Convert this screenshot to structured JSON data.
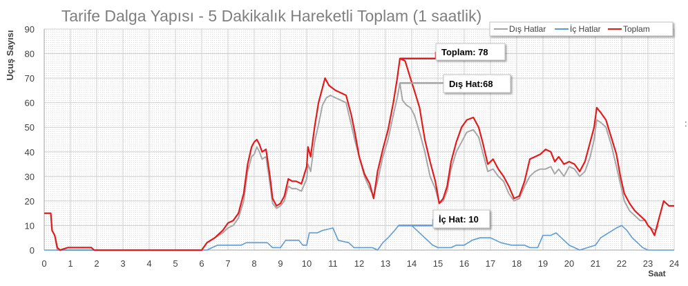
{
  "chart_data": {
    "type": "line",
    "title": "Tarife Dalga Yapısı - 5 Dakikalık Hareketli Toplam (1 saatlik)",
    "ylabel": "Uçuş Sayısı",
    "xlabel": "Saat",
    "xlim": [
      0,
      24
    ],
    "ylim": [
      0,
      90
    ],
    "x_ticks": [
      "0",
      "1",
      "2",
      "3",
      "4",
      "5",
      "6",
      "7",
      "8",
      "9",
      "10",
      "11",
      "12",
      "13",
      "14",
      "15",
      "16",
      "17",
      "18",
      "19",
      "20",
      "21",
      "22",
      "23",
      "24"
    ],
    "y_ticks": [
      "0",
      "10",
      "20",
      "30",
      "40",
      "50",
      "60",
      "70",
      "80",
      "90"
    ],
    "grid": true,
    "legend_position": "top-right",
    "colors": {
      "dis": "#a6a6a6",
      "ic": "#5b9bd5",
      "toplam": "#e31a1c"
    },
    "series": [
      {
        "name": "Dış Hatlar",
        "color": "#a6a6a6",
        "points": [
          [
            0,
            15
          ],
          [
            0.25,
            15
          ],
          [
            0.3,
            8
          ],
          [
            0.4,
            6
          ],
          [
            0.5,
            0
          ],
          [
            6,
            0
          ],
          [
            6.2,
            3
          ],
          [
            6.5,
            5
          ],
          [
            6.8,
            7
          ],
          [
            7.0,
            9
          ],
          [
            7.2,
            10
          ],
          [
            7.4,
            13
          ],
          [
            7.6,
            20
          ],
          [
            7.75,
            32
          ],
          [
            7.9,
            38
          ],
          [
            8.0,
            39
          ],
          [
            8.1,
            42
          ],
          [
            8.2,
            40
          ],
          [
            8.3,
            37
          ],
          [
            8.45,
            38
          ],
          [
            8.6,
            27
          ],
          [
            8.7,
            19
          ],
          [
            8.85,
            17
          ],
          [
            9.0,
            18
          ],
          [
            9.15,
            20
          ],
          [
            9.3,
            26
          ],
          [
            9.45,
            25
          ],
          [
            9.6,
            25
          ],
          [
            9.8,
            24
          ],
          [
            10.0,
            29
          ],
          [
            10.05,
            35
          ],
          [
            10.15,
            32
          ],
          [
            10.3,
            44
          ],
          [
            10.45,
            51
          ],
          [
            10.6,
            59
          ],
          [
            10.75,
            62
          ],
          [
            10.9,
            63
          ],
          [
            11.1,
            62
          ],
          [
            11.3,
            61
          ],
          [
            11.5,
            60
          ],
          [
            11.7,
            51
          ],
          [
            11.85,
            44
          ],
          [
            12.0,
            38
          ],
          [
            12.2,
            30
          ],
          [
            12.4,
            25
          ],
          [
            12.55,
            22
          ],
          [
            12.7,
            28
          ],
          [
            12.9,
            38
          ],
          [
            13.1,
            45
          ],
          [
            13.3,
            55
          ],
          [
            13.45,
            62
          ],
          [
            13.55,
            68
          ],
          [
            13.65,
            61
          ],
          [
            13.8,
            59
          ],
          [
            13.95,
            58
          ],
          [
            14.1,
            55
          ],
          [
            14.3,
            48
          ],
          [
            14.5,
            40
          ],
          [
            14.7,
            30
          ],
          [
            14.9,
            25
          ],
          [
            15.05,
            19
          ],
          [
            15.2,
            20
          ],
          [
            15.35,
            24
          ],
          [
            15.5,
            33
          ],
          [
            15.7,
            40
          ],
          [
            15.9,
            44
          ],
          [
            16.1,
            48
          ],
          [
            16.35,
            49
          ],
          [
            16.55,
            46
          ],
          [
            16.7,
            40
          ],
          [
            16.9,
            32
          ],
          [
            17.1,
            33
          ],
          [
            17.3,
            30
          ],
          [
            17.5,
            28
          ],
          [
            17.7,
            23
          ],
          [
            17.9,
            20
          ],
          [
            18.1,
            21
          ],
          [
            18.3,
            26
          ],
          [
            18.5,
            30
          ],
          [
            18.7,
            32
          ],
          [
            18.9,
            33
          ],
          [
            19.1,
            33
          ],
          [
            19.3,
            34
          ],
          [
            19.45,
            31
          ],
          [
            19.6,
            33
          ],
          [
            19.8,
            30
          ],
          [
            20.0,
            34
          ],
          [
            20.2,
            33
          ],
          [
            20.4,
            30
          ],
          [
            20.6,
            32
          ],
          [
            20.8,
            38
          ],
          [
            20.95,
            45
          ],
          [
            21.05,
            53
          ],
          [
            21.2,
            52
          ],
          [
            21.4,
            50
          ],
          [
            21.6,
            43
          ],
          [
            21.8,
            34
          ],
          [
            21.95,
            27
          ],
          [
            22.1,
            20
          ],
          [
            22.3,
            16
          ],
          [
            22.5,
            14
          ],
          [
            22.7,
            12
          ],
          [
            22.9,
            12
          ],
          [
            23.0,
            10
          ],
          [
            23.1,
            9
          ],
          [
            23.3,
            8
          ],
          [
            23.4,
            10
          ]
        ]
      },
      {
        "name": "İç Hatlar",
        "color": "#5b9bd5",
        "points": [
          [
            0,
            0
          ],
          [
            6.2,
            0
          ],
          [
            6.4,
            1
          ],
          [
            6.6,
            2
          ],
          [
            7.5,
            2
          ],
          [
            7.7,
            3
          ],
          [
            8.5,
            3
          ],
          [
            8.7,
            1
          ],
          [
            9.0,
            1
          ],
          [
            9.2,
            4
          ],
          [
            9.7,
            4
          ],
          [
            9.85,
            2
          ],
          [
            10.0,
            2
          ],
          [
            10.1,
            7
          ],
          [
            10.4,
            7
          ],
          [
            10.6,
            8
          ],
          [
            11.0,
            9
          ],
          [
            11.2,
            4
          ],
          [
            11.6,
            3
          ],
          [
            11.8,
            1
          ],
          [
            12.5,
            1
          ],
          [
            12.7,
            0
          ],
          [
            12.9,
            3
          ],
          [
            13.1,
            5
          ],
          [
            13.35,
            8
          ],
          [
            13.5,
            10
          ],
          [
            14.0,
            10
          ],
          [
            14.2,
            8
          ],
          [
            14.4,
            6
          ],
          [
            14.6,
            4
          ],
          [
            14.8,
            2
          ],
          [
            15.0,
            1
          ],
          [
            15.5,
            1
          ],
          [
            15.7,
            2
          ],
          [
            16.0,
            2
          ],
          [
            16.3,
            4
          ],
          [
            16.6,
            5
          ],
          [
            17.0,
            5
          ],
          [
            17.4,
            3
          ],
          [
            17.8,
            2
          ],
          [
            18.0,
            2
          ],
          [
            18.3,
            2
          ],
          [
            18.5,
            1
          ],
          [
            18.8,
            1
          ],
          [
            19.0,
            6
          ],
          [
            19.3,
            6
          ],
          [
            19.5,
            7
          ],
          [
            19.8,
            4
          ],
          [
            20.0,
            2
          ],
          [
            20.2,
            1
          ],
          [
            20.4,
            0
          ],
          [
            20.7,
            1
          ],
          [
            21.0,
            2
          ],
          [
            21.2,
            5
          ],
          [
            21.5,
            7
          ],
          [
            21.8,
            9
          ],
          [
            22.0,
            10
          ],
          [
            22.2,
            8
          ],
          [
            22.4,
            5
          ],
          [
            22.6,
            3
          ],
          [
            22.8,
            1
          ],
          [
            23.0,
            0
          ],
          [
            24,
            0
          ]
        ]
      },
      {
        "name": "Toplam",
        "color": "#e31a1c",
        "points": [
          [
            0,
            15
          ],
          [
            0.25,
            15
          ],
          [
            0.3,
            8
          ],
          [
            0.4,
            6
          ],
          [
            0.5,
            1
          ],
          [
            0.6,
            0
          ],
          [
            0.9,
            1
          ],
          [
            1.8,
            1
          ],
          [
            1.9,
            0
          ],
          [
            6.0,
            0
          ],
          [
            6.2,
            3
          ],
          [
            6.5,
            5
          ],
          [
            6.8,
            8
          ],
          [
            7.0,
            11
          ],
          [
            7.2,
            12
          ],
          [
            7.4,
            15
          ],
          [
            7.6,
            23
          ],
          [
            7.75,
            35
          ],
          [
            7.9,
            42
          ],
          [
            8.0,
            44
          ],
          [
            8.1,
            45
          ],
          [
            8.2,
            43
          ],
          [
            8.3,
            40
          ],
          [
            8.45,
            41
          ],
          [
            8.6,
            30
          ],
          [
            8.7,
            21
          ],
          [
            8.85,
            18
          ],
          [
            9.0,
            19
          ],
          [
            9.15,
            22
          ],
          [
            9.3,
            29
          ],
          [
            9.45,
            28
          ],
          [
            9.6,
            28
          ],
          [
            9.8,
            27
          ],
          [
            10.0,
            34
          ],
          [
            10.05,
            42
          ],
          [
            10.15,
            38
          ],
          [
            10.3,
            50
          ],
          [
            10.45,
            60
          ],
          [
            10.6,
            66
          ],
          [
            10.7,
            70
          ],
          [
            10.85,
            67
          ],
          [
            11.1,
            65
          ],
          [
            11.3,
            64
          ],
          [
            11.5,
            63
          ],
          [
            11.7,
            55
          ],
          [
            11.85,
            47
          ],
          [
            12.0,
            38
          ],
          [
            12.2,
            31
          ],
          [
            12.4,
            27
          ],
          [
            12.55,
            21
          ],
          [
            12.7,
            32
          ],
          [
            12.9,
            41
          ],
          [
            13.1,
            49
          ],
          [
            13.3,
            60
          ],
          [
            13.45,
            70
          ],
          [
            13.55,
            78
          ],
          [
            13.75,
            77
          ],
          [
            13.95,
            70
          ],
          [
            14.1,
            65
          ],
          [
            14.3,
            58
          ],
          [
            14.5,
            45
          ],
          [
            14.7,
            36
          ],
          [
            14.9,
            28
          ],
          [
            15.05,
            19
          ],
          [
            15.2,
            21
          ],
          [
            15.35,
            26
          ],
          [
            15.5,
            36
          ],
          [
            15.7,
            44
          ],
          [
            15.9,
            50
          ],
          [
            16.1,
            53
          ],
          [
            16.35,
            54
          ],
          [
            16.55,
            50
          ],
          [
            16.7,
            44
          ],
          [
            16.9,
            35
          ],
          [
            17.1,
            37
          ],
          [
            17.3,
            33
          ],
          [
            17.5,
            30
          ],
          [
            17.7,
            26
          ],
          [
            17.9,
            21
          ],
          [
            18.1,
            22
          ],
          [
            18.3,
            28
          ],
          [
            18.5,
            37
          ],
          [
            18.7,
            38
          ],
          [
            18.9,
            39
          ],
          [
            19.1,
            41
          ],
          [
            19.3,
            40
          ],
          [
            19.45,
            36
          ],
          [
            19.6,
            38
          ],
          [
            19.8,
            35
          ],
          [
            20.0,
            36
          ],
          [
            20.2,
            35
          ],
          [
            20.4,
            32
          ],
          [
            20.6,
            36
          ],
          [
            20.8,
            44
          ],
          [
            20.95,
            50
          ],
          [
            21.05,
            58
          ],
          [
            21.2,
            56
          ],
          [
            21.4,
            53
          ],
          [
            21.6,
            46
          ],
          [
            21.8,
            39
          ],
          [
            21.95,
            30
          ],
          [
            22.1,
            23
          ],
          [
            22.3,
            19
          ],
          [
            22.5,
            16
          ],
          [
            22.7,
            14
          ],
          [
            22.9,
            12
          ],
          [
            23.0,
            10
          ],
          [
            23.1,
            9
          ],
          [
            23.25,
            6
          ],
          [
            23.4,
            12
          ],
          [
            23.6,
            20
          ],
          [
            23.8,
            18
          ],
          [
            24,
            18
          ]
        ]
      }
    ],
    "annotations": [
      {
        "label": "Toplam: 78",
        "x": 13.55,
        "y": 78,
        "series": "Toplam"
      },
      {
        "label": "Dış Hat:68",
        "x": 13.55,
        "y": 68,
        "series": "Dış Hatlar"
      },
      {
        "label": "İç Hat: 10",
        "x": 13.5,
        "y": 10,
        "series": "İç Hatlar"
      }
    ]
  }
}
